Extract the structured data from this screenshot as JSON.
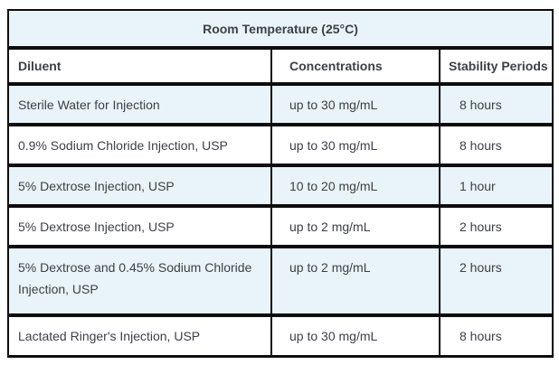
{
  "table": {
    "title": "Room Temperature (25°C)",
    "columns": [
      {
        "label": "Diluent"
      },
      {
        "label": "Concentrations"
      },
      {
        "label": "Stability Periods"
      }
    ],
    "rows": [
      {
        "diluent": "Sterile Water for Injection",
        "concentration": "up to 30 mg/mL",
        "stability": "8 hours"
      },
      {
        "diluent": "0.9% Sodium Chloride Injection, USP",
        "concentration": "up to 30 mg/mL",
        "stability": "8 hours"
      },
      {
        "diluent": "5% Dextrose Injection, USP",
        "concentration": "10 to 20 mg/mL",
        "stability": "1 hour"
      },
      {
        "diluent": "5% Dextrose Injection, USP",
        "concentration": "up to 2 mg/mL",
        "stability": "2 hours"
      },
      {
        "diluent": "5% Dextrose and 0.45% Sodium Chloride Injection, USP",
        "concentration": "up to 2 mg/mL",
        "stability": "2 hours"
      },
      {
        "diluent": "Lactated Ringer's Injection, USP",
        "concentration": "up to 30 mg/mL",
        "stability": "8 hours"
      }
    ],
    "colors": {
      "highlight_row": "#e9f3fa",
      "border": "#0d0d0d",
      "text": "#3e4049",
      "background": "#ffffff"
    }
  }
}
